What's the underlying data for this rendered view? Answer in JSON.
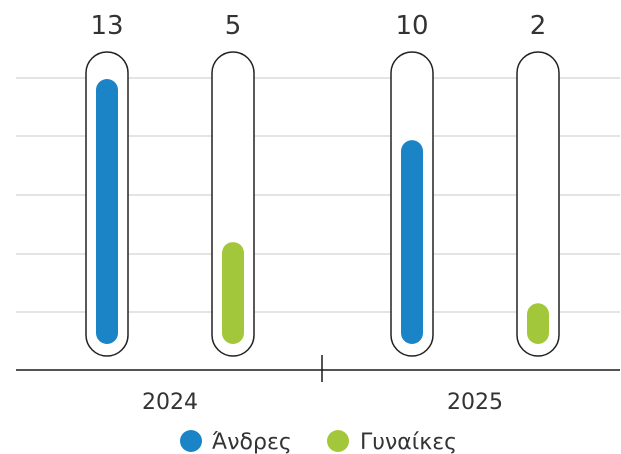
{
  "chart_data": {
    "type": "bar",
    "categories": [
      "2024",
      "2025"
    ],
    "series": [
      {
        "name": "Άνδρες",
        "color": "#1a84c7",
        "values": [
          13,
          10
        ]
      },
      {
        "name": "Γυναίκες",
        "color": "#a3c73a",
        "values": [
          5,
          2
        ]
      }
    ],
    "ylim": [
      0,
      13
    ],
    "grid": true,
    "legend_position": "bottom"
  }
}
